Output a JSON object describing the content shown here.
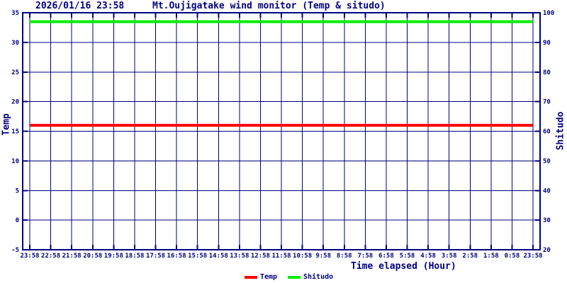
{
  "header": {
    "datetime": "2026/01/16 23:58",
    "title": "Mt.Oujigatake wind monitor (Temp & situdo)"
  },
  "chart_data": {
    "type": "line",
    "title": "Mt.Oujigatake wind monitor (Temp & situdo)",
    "datetime": "2026/01/16 23:58",
    "xlabel": "Time elapsed (Hour)",
    "x_ticks": [
      "23:58",
      "22:58",
      "21:58",
      "20:58",
      "19:58",
      "18:58",
      "17:58",
      "16:58",
      "15:58",
      "14:58",
      "13:58",
      "12:58",
      "11:58",
      "10:58",
      "9:58",
      "8:58",
      "7:58",
      "6:58",
      "5:58",
      "4:58",
      "3:58",
      "2:58",
      "1:58",
      "0:58",
      "23:58"
    ],
    "y_left": {
      "label": "Temp",
      "min": -5,
      "max": 35,
      "step": 5,
      "ticks": [
        35,
        30,
        25,
        20,
        15,
        10,
        5,
        0,
        -5
      ]
    },
    "y_right": {
      "label": "Shitudo",
      "min": 20,
      "max": 100,
      "step": 10,
      "ticks": [
        100,
        90,
        80,
        70,
        60,
        50,
        40,
        30,
        20
      ]
    },
    "series": [
      {
        "name": "Temp",
        "axis": "left",
        "color": "#ff0000",
        "constant_value": 16,
        "shape": "flat-line"
      },
      {
        "name": "Shitudo",
        "axis": "right",
        "color": "#00ee00",
        "constant_value": 97,
        "shape": "flat-line"
      }
    ],
    "grid": true,
    "legend_position": "bottom-center",
    "colors": {
      "axis": "#000080",
      "grid": "#000080",
      "background": "#ffffff"
    }
  }
}
